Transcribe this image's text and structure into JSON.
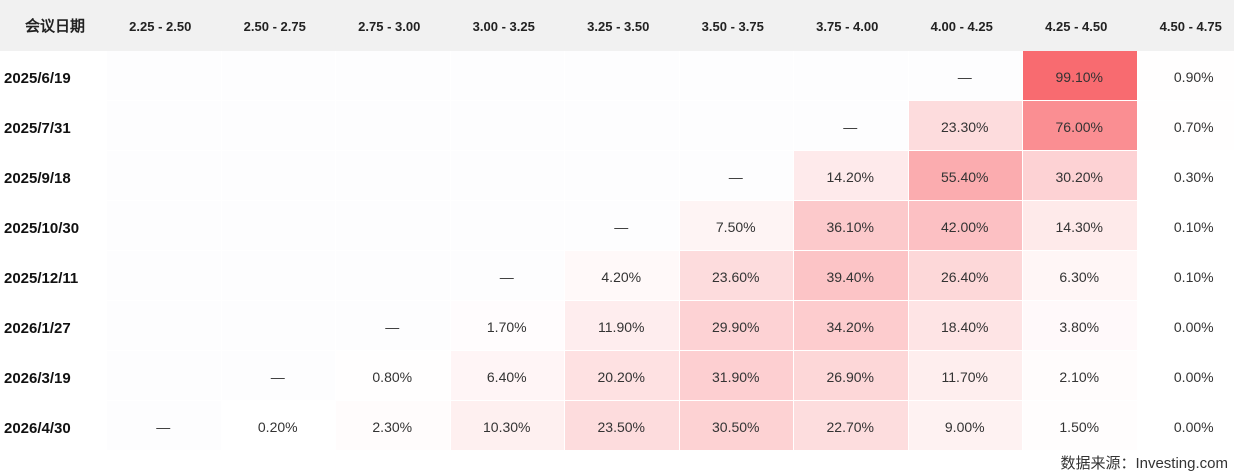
{
  "chart_data": {
    "type": "heatmap",
    "corner_label": "会议日期",
    "columns": [
      "2.25 - 2.50",
      "2.50 - 2.75",
      "2.75 - 3.00",
      "3.00 - 3.25",
      "3.25 - 3.50",
      "3.50 - 3.75",
      "3.75 - 4.00",
      "4.00 - 4.25",
      "4.25 - 4.50",
      "4.50 - 4.75"
    ],
    "rows": [
      {
        "date": "2025/6/19",
        "cells": [
          "",
          "",
          "",
          "",
          "",
          "",
          "",
          "—",
          "99.10%",
          "0.90%"
        ]
      },
      {
        "date": "2025/7/31",
        "cells": [
          "",
          "",
          "",
          "",
          "",
          "",
          "—",
          "23.30%",
          "76.00%",
          "0.70%"
        ]
      },
      {
        "date": "2025/9/18",
        "cells": [
          "",
          "",
          "",
          "",
          "",
          "—",
          "14.20%",
          "55.40%",
          "30.20%",
          "0.30%"
        ]
      },
      {
        "date": "2025/10/30",
        "cells": [
          "",
          "",
          "",
          "",
          "—",
          "7.50%",
          "36.10%",
          "42.00%",
          "14.30%",
          "0.10%"
        ]
      },
      {
        "date": "2025/12/11",
        "cells": [
          "",
          "",
          "",
          "—",
          "4.20%",
          "23.60%",
          "39.40%",
          "26.40%",
          "6.30%",
          "0.10%"
        ]
      },
      {
        "date": "2026/1/27",
        "cells": [
          "",
          "",
          "—",
          "1.70%",
          "11.90%",
          "29.90%",
          "34.20%",
          "18.40%",
          "3.80%",
          "0.00%"
        ]
      },
      {
        "date": "2026/3/19",
        "cells": [
          "",
          "—",
          "0.80%",
          "6.40%",
          "20.20%",
          "31.90%",
          "26.90%",
          "11.70%",
          "2.10%",
          "0.00%"
        ]
      },
      {
        "date": "2026/4/30",
        "cells": [
          "—",
          "0.20%",
          "2.30%",
          "10.30%",
          "23.50%",
          "30.50%",
          "22.70%",
          "9.00%",
          "1.50%",
          "0.00%"
        ]
      }
    ],
    "source": "数据来源：Investing.com",
    "colors": {
      "high": "#f86a6f",
      "low": "#ffffff",
      "header_band": "#f1f1f1",
      "empty_cell": "#fdfdfe"
    }
  }
}
